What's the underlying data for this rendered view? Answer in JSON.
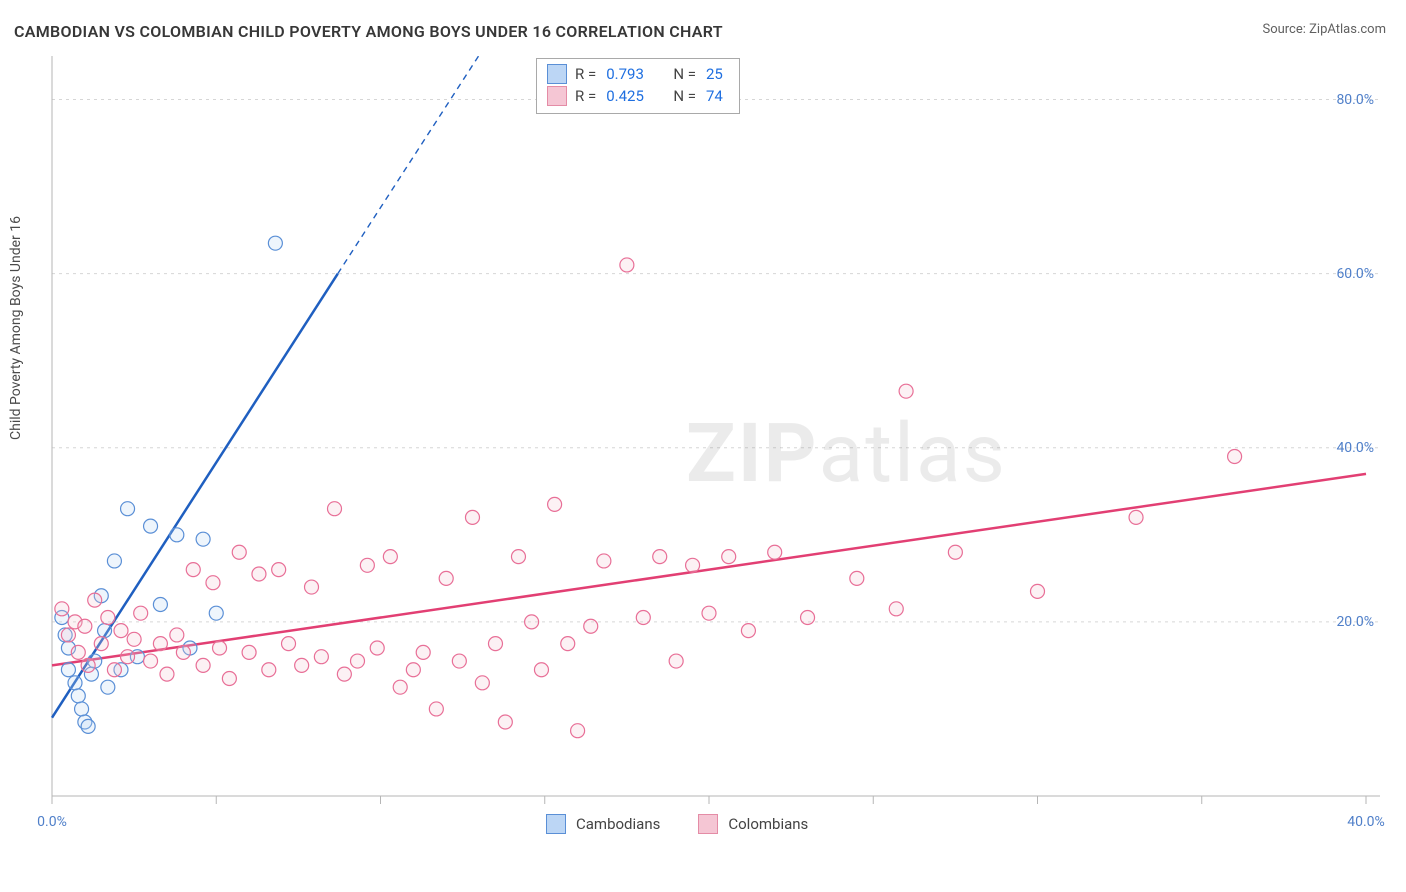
{
  "title": "CAMBODIAN VS COLOMBIAN CHILD POVERTY AMONG BOYS UNDER 16 CORRELATION CHART",
  "source_label": "Source: ",
  "source_name": "ZipAtlas.com",
  "ylabel": "Child Poverty Among Boys Under 16",
  "watermark_zip": "ZIP",
  "watermark_atlas": "atlas",
  "chart": {
    "type": "scatter-with-regression",
    "background_color": "#ffffff",
    "grid_color": "#d6d6d6",
    "grid_dash": "3,4",
    "axis_color": "#b6b6b6",
    "tick_label_color": "#4f7fc9",
    "axis_label_color": "#4a4a4a",
    "title_color": "#373737",
    "title_fontsize": 16,
    "label_fontsize": 14,
    "tick_fontsize": 14,
    "xlim": [
      0,
      40
    ],
    "ylim": [
      0,
      85
    ],
    "xticks": [
      0,
      5,
      10,
      15,
      20,
      25,
      30,
      35,
      40
    ],
    "xtick_labels": {
      "0": "0.0%",
      "40": "40.0%"
    },
    "yticks": [
      20,
      40,
      60,
      80
    ],
    "ytick_labels": {
      "20": "20.0%",
      "40": "40.0%",
      "60": "60.0%",
      "80": "80.0%"
    },
    "marker_radius": 7,
    "marker_stroke_width": 1.2,
    "marker_fill_opacity": 0.25,
    "line_width": 2.5,
    "dash_pattern": "6,5",
    "legend_top": {
      "rows": [
        {
          "swatch_fill": "#bcd6f5",
          "swatch_stroke": "#5a8fd6",
          "r_label": "R =",
          "r_value": "0.793",
          "n_label": "N =",
          "n_value": "25"
        },
        {
          "swatch_fill": "#f5c6d4",
          "swatch_stroke": "#e48ca6",
          "r_label": "R =",
          "r_value": "0.425",
          "n_label": "N =",
          "n_value": "74"
        }
      ]
    },
    "legend_bottom": [
      {
        "swatch_fill": "#bcd6f5",
        "swatch_stroke": "#5a8fd6",
        "label": "Cambodians"
      },
      {
        "swatch_fill": "#f5c6d4",
        "swatch_stroke": "#e48ca6",
        "label": "Colombians"
      }
    ],
    "series": [
      {
        "name": "Cambodians",
        "color_stroke": "#5a8fd6",
        "color_fill": "#bcd6f5",
        "line_color": "#1f5fc0",
        "regression": {
          "x1": 0,
          "y1": 9,
          "x2_solid": 8.7,
          "y2_solid": 60,
          "x2_dash": 13.5,
          "y2_dash": 88
        },
        "points": [
          [
            0.3,
            20.5
          ],
          [
            0.4,
            18.5
          ],
          [
            0.5,
            17.0
          ],
          [
            0.5,
            14.5
          ],
          [
            0.7,
            13.0
          ],
          [
            0.8,
            11.5
          ],
          [
            0.9,
            10.0
          ],
          [
            1.0,
            8.5
          ],
          [
            1.1,
            8.0
          ],
          [
            1.2,
            14.0
          ],
          [
            1.3,
            15.5
          ],
          [
            1.5,
            23.0
          ],
          [
            1.6,
            19.0
          ],
          [
            1.7,
            12.5
          ],
          [
            1.9,
            27.0
          ],
          [
            2.1,
            14.5
          ],
          [
            2.3,
            33.0
          ],
          [
            2.6,
            16.0
          ],
          [
            3.0,
            31.0
          ],
          [
            3.3,
            22.0
          ],
          [
            3.8,
            30.0
          ],
          [
            4.2,
            17.0
          ],
          [
            4.6,
            29.5
          ],
          [
            5.0,
            21.0
          ],
          [
            6.8,
            63.5
          ]
        ]
      },
      {
        "name": "Colombians",
        "color_stroke": "#e86f97",
        "color_fill": "#f5c6d4",
        "line_color": "#e23f73",
        "regression": {
          "x1": 0,
          "y1": 15,
          "x2_solid": 40,
          "y2_solid": 37,
          "x2_dash": 40,
          "y2_dash": 37
        },
        "points": [
          [
            0.3,
            21.5
          ],
          [
            0.5,
            18.5
          ],
          [
            0.7,
            20.0
          ],
          [
            0.8,
            16.5
          ],
          [
            1.0,
            19.5
          ],
          [
            1.1,
            15.0
          ],
          [
            1.3,
            22.5
          ],
          [
            1.5,
            17.5
          ],
          [
            1.7,
            20.5
          ],
          [
            1.9,
            14.5
          ],
          [
            2.1,
            19.0
          ],
          [
            2.3,
            16.0
          ],
          [
            2.5,
            18.0
          ],
          [
            2.7,
            21.0
          ],
          [
            3.0,
            15.5
          ],
          [
            3.3,
            17.5
          ],
          [
            3.5,
            14.0
          ],
          [
            3.8,
            18.5
          ],
          [
            4.0,
            16.5
          ],
          [
            4.3,
            26.0
          ],
          [
            4.6,
            15.0
          ],
          [
            4.9,
            24.5
          ],
          [
            5.1,
            17.0
          ],
          [
            5.4,
            13.5
          ],
          [
            5.7,
            28.0
          ],
          [
            6.0,
            16.5
          ],
          [
            6.3,
            25.5
          ],
          [
            6.6,
            14.5
          ],
          [
            6.9,
            26.0
          ],
          [
            7.2,
            17.5
          ],
          [
            7.6,
            15.0
          ],
          [
            7.9,
            24.0
          ],
          [
            8.2,
            16.0
          ],
          [
            8.6,
            33.0
          ],
          [
            8.9,
            14.0
          ],
          [
            9.3,
            15.5
          ],
          [
            9.6,
            26.5
          ],
          [
            9.9,
            17.0
          ],
          [
            10.3,
            27.5
          ],
          [
            10.6,
            12.5
          ],
          [
            11.0,
            14.5
          ],
          [
            11.3,
            16.5
          ],
          [
            11.7,
            10.0
          ],
          [
            12.0,
            25.0
          ],
          [
            12.4,
            15.5
          ],
          [
            12.8,
            32.0
          ],
          [
            13.1,
            13.0
          ],
          [
            13.5,
            17.5
          ],
          [
            13.8,
            8.5
          ],
          [
            14.2,
            27.5
          ],
          [
            14.6,
            20.0
          ],
          [
            14.9,
            14.5
          ],
          [
            15.3,
            33.5
          ],
          [
            15.7,
            17.5
          ],
          [
            16.0,
            7.5
          ],
          [
            16.4,
            19.5
          ],
          [
            16.8,
            27.0
          ],
          [
            17.5,
            61.0
          ],
          [
            18.0,
            20.5
          ],
          [
            18.5,
            27.5
          ],
          [
            19.0,
            15.5
          ],
          [
            19.5,
            26.5
          ],
          [
            20.0,
            21.0
          ],
          [
            20.6,
            27.5
          ],
          [
            21.2,
            19.0
          ],
          [
            22.0,
            28.0
          ],
          [
            23.0,
            20.5
          ],
          [
            24.5,
            25.0
          ],
          [
            25.7,
            21.5
          ],
          [
            26.0,
            46.5
          ],
          [
            27.5,
            28.0
          ],
          [
            30.0,
            23.5
          ],
          [
            33.0,
            32.0
          ],
          [
            36.0,
            39.0
          ]
        ]
      }
    ]
  }
}
